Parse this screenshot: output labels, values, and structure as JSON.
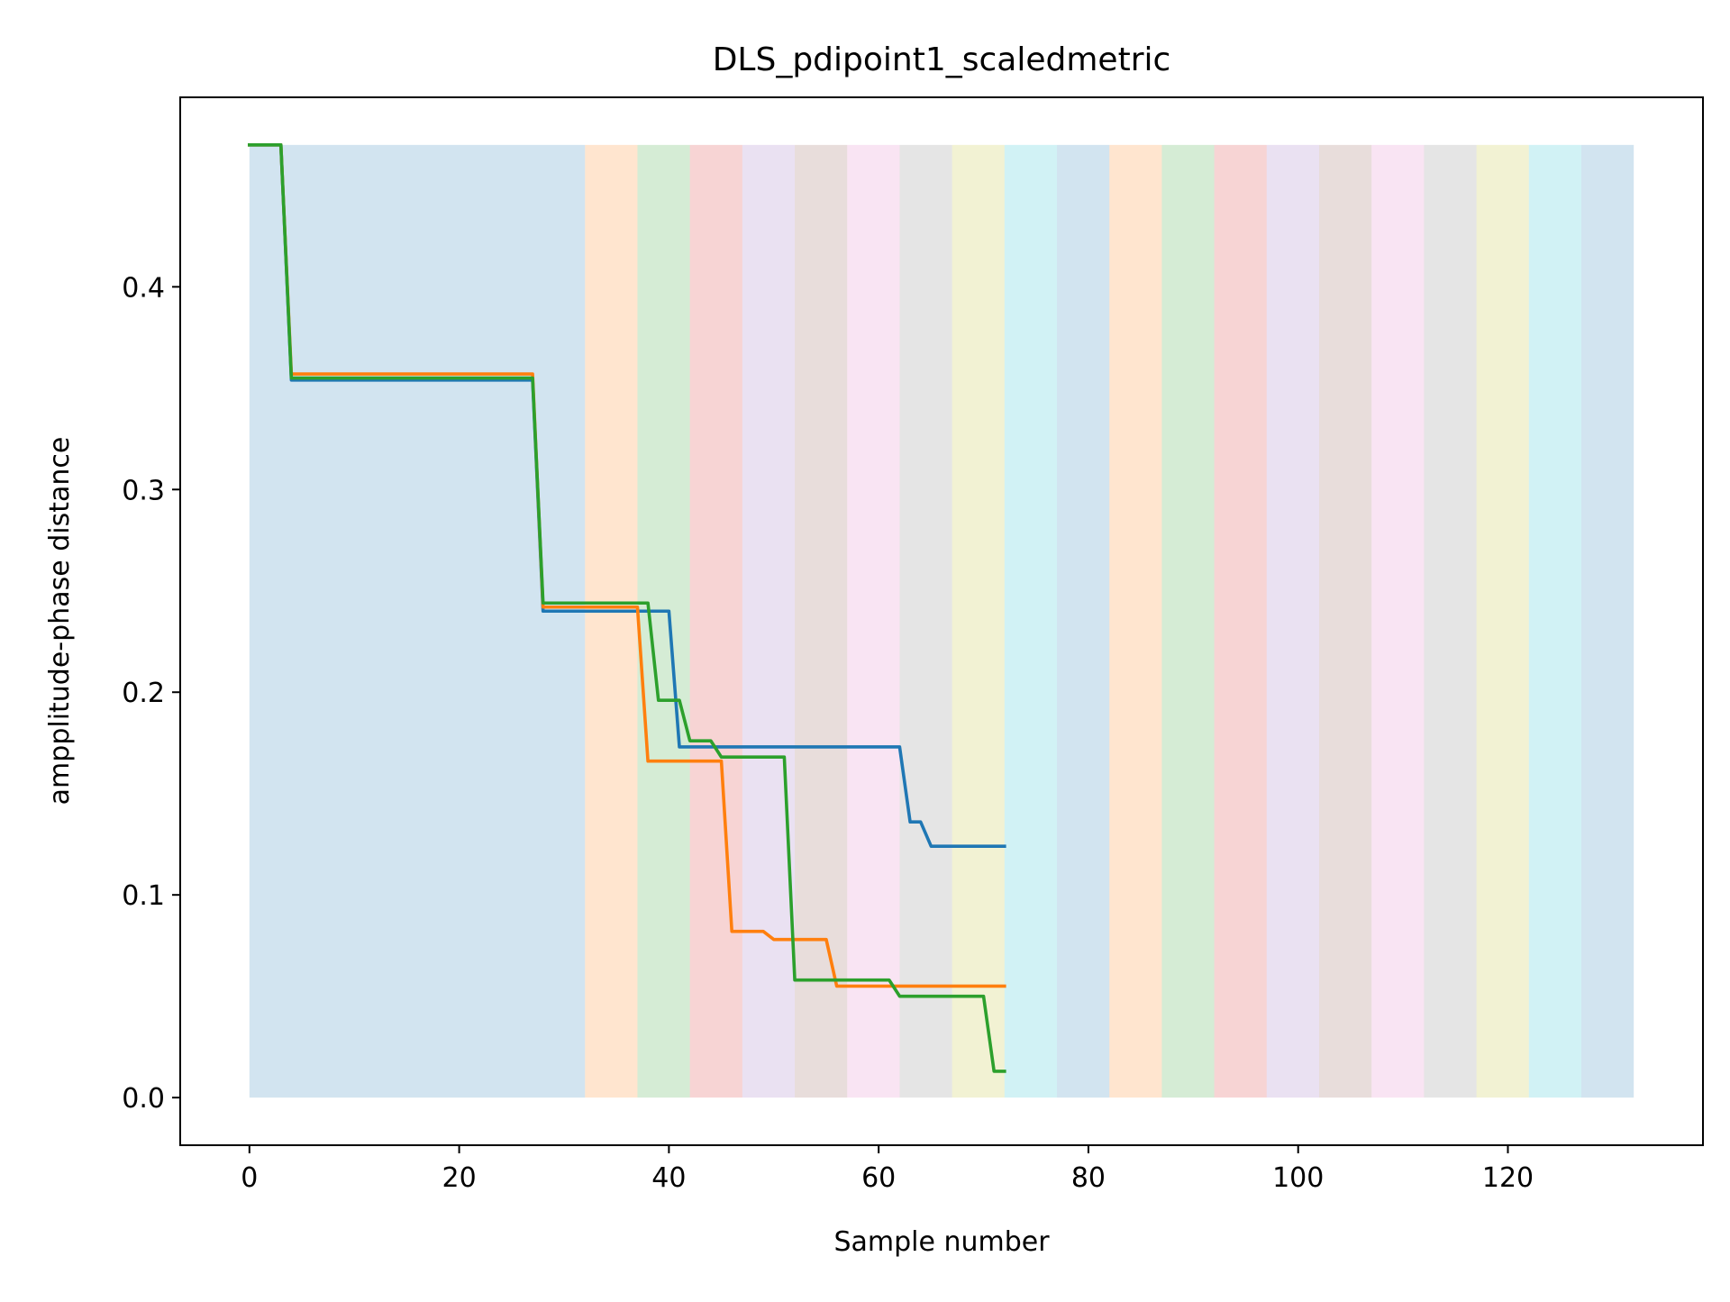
{
  "chart_data": {
    "type": "line",
    "title": "DLS_pdipoint1_scaledmetric",
    "xlabel": "Sample number",
    "ylabel": "ampplitude-phase distance",
    "xlim": [
      -6.6,
      138.6
    ],
    "ylim": [
      -0.0235,
      0.4935
    ],
    "xticks": [
      0,
      20,
      40,
      60,
      80,
      100,
      120
    ],
    "xtick_labels": [
      "0",
      "20",
      "40",
      "60",
      "80",
      "100",
      "120"
    ],
    "yticks": [
      0.0,
      0.1,
      0.2,
      0.3,
      0.4
    ],
    "ytick_labels": [
      "0.0",
      "0.1",
      "0.2",
      "0.3",
      "0.4"
    ],
    "grid": false,
    "background_bands": {
      "y_range": [
        0,
        0.47
      ],
      "bands": [
        {
          "x0": 0,
          "x1": 32,
          "color": "#1f77b4"
        },
        {
          "x0": 32,
          "x1": 37,
          "color": "#ff7f0e"
        },
        {
          "x0": 37,
          "x1": 42,
          "color": "#2ca02c"
        },
        {
          "x0": 42,
          "x1": 47,
          "color": "#d62728"
        },
        {
          "x0": 47,
          "x1": 52,
          "color": "#9467bd"
        },
        {
          "x0": 52,
          "x1": 57,
          "color": "#8c564b"
        },
        {
          "x0": 57,
          "x1": 62,
          "color": "#e377c2"
        },
        {
          "x0": 62,
          "x1": 67,
          "color": "#7f7f7f"
        },
        {
          "x0": 67,
          "x1": 72,
          "color": "#bcbd22"
        },
        {
          "x0": 72,
          "x1": 77,
          "color": "#17becf"
        },
        {
          "x0": 77,
          "x1": 82,
          "color": "#1f77b4"
        },
        {
          "x0": 82,
          "x1": 87,
          "color": "#ff7f0e"
        },
        {
          "x0": 87,
          "x1": 92,
          "color": "#2ca02c"
        },
        {
          "x0": 92,
          "x1": 97,
          "color": "#d62728"
        },
        {
          "x0": 97,
          "x1": 102,
          "color": "#9467bd"
        },
        {
          "x0": 102,
          "x1": 107,
          "color": "#8c564b"
        },
        {
          "x0": 107,
          "x1": 112,
          "color": "#e377c2"
        },
        {
          "x0": 112,
          "x1": 117,
          "color": "#7f7f7f"
        },
        {
          "x0": 117,
          "x1": 122,
          "color": "#bcbd22"
        },
        {
          "x0": 122,
          "x1": 127,
          "color": "#17becf"
        },
        {
          "x0": 127,
          "x1": 132,
          "color": "#1f77b4"
        }
      ]
    },
    "series": [
      {
        "color": "#1f77b4",
        "points": [
          [
            0,
            0.47
          ],
          [
            3,
            0.47
          ],
          [
            4,
            0.354
          ],
          [
            27,
            0.354
          ],
          [
            28,
            0.24
          ],
          [
            40,
            0.24
          ],
          [
            41,
            0.173
          ],
          [
            62,
            0.173
          ],
          [
            63,
            0.136
          ],
          [
            64,
            0.136
          ],
          [
            65,
            0.124
          ],
          [
            72,
            0.124
          ]
        ]
      },
      {
        "color": "#ff7f0e",
        "points": [
          [
            0,
            0.47
          ],
          [
            3,
            0.47
          ],
          [
            4,
            0.357
          ],
          [
            27,
            0.357
          ],
          [
            28,
            0.242
          ],
          [
            37,
            0.242
          ],
          [
            38,
            0.166
          ],
          [
            45,
            0.166
          ],
          [
            46,
            0.082
          ],
          [
            49,
            0.082
          ],
          [
            50,
            0.078
          ],
          [
            55,
            0.078
          ],
          [
            56,
            0.055
          ],
          [
            72,
            0.055
          ]
        ]
      },
      {
        "color": "#2ca02c",
        "points": [
          [
            0,
            0.47
          ],
          [
            3,
            0.47
          ],
          [
            4,
            0.355
          ],
          [
            27,
            0.355
          ],
          [
            28,
            0.244
          ],
          [
            38,
            0.244
          ],
          [
            39,
            0.196
          ],
          [
            41,
            0.196
          ],
          [
            42,
            0.176
          ],
          [
            44,
            0.176
          ],
          [
            45,
            0.168
          ],
          [
            51,
            0.168
          ],
          [
            52,
            0.058
          ],
          [
            61,
            0.058
          ],
          [
            62,
            0.05
          ],
          [
            70,
            0.05
          ],
          [
            71,
            0.013
          ],
          [
            72,
            0.013
          ]
        ]
      }
    ]
  }
}
